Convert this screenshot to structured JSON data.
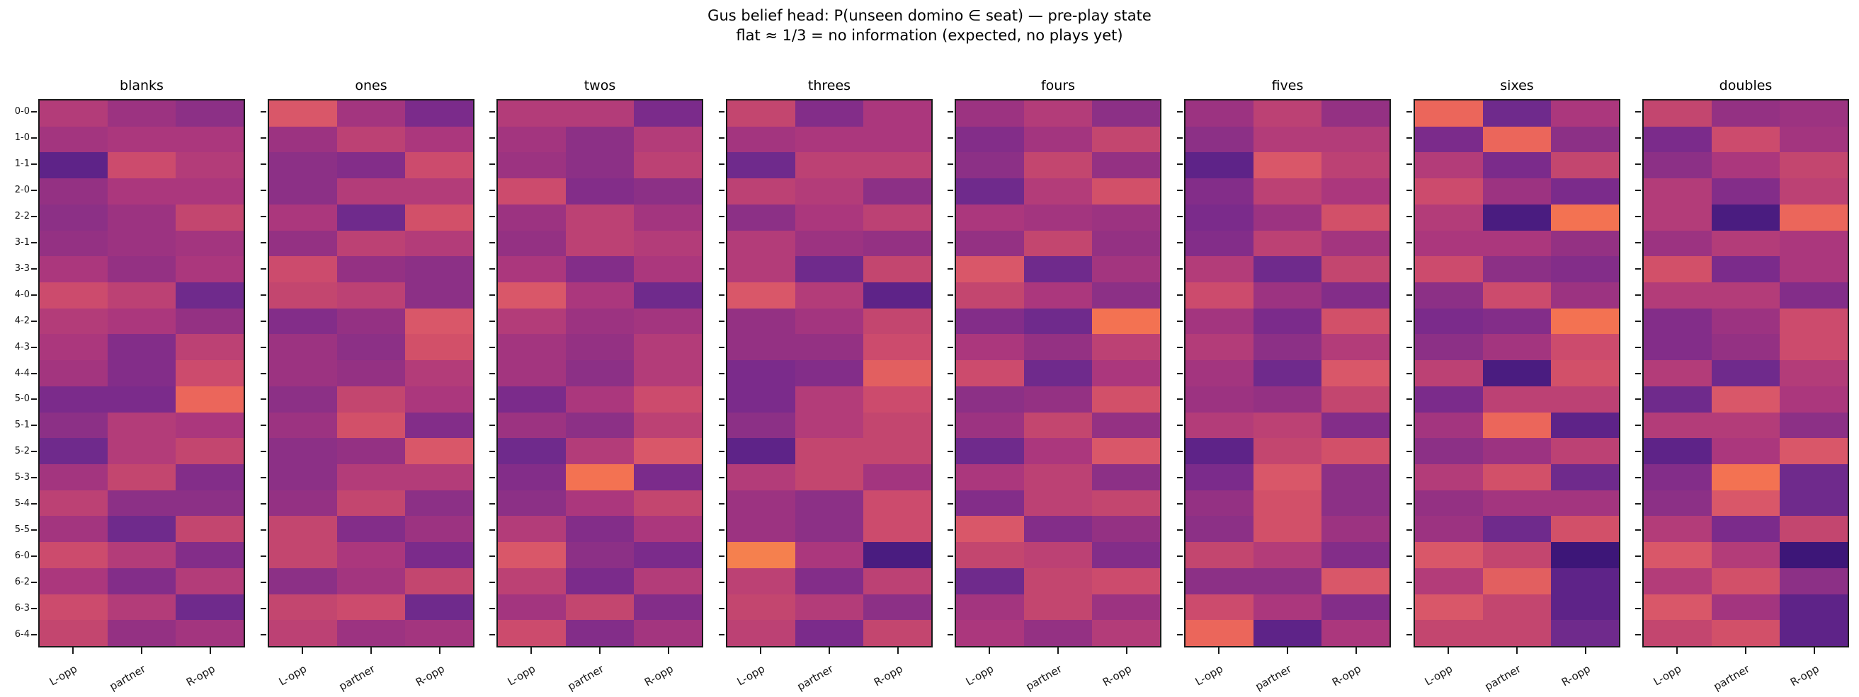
{
  "figure": {
    "title_line1": "Gus belief head: P(unseen domino ∈ seat) — pre-play state",
    "title_line2": "flat ≈ 1/3 = no information (expected, no plays yet)"
  },
  "chart_data": {
    "type": "heatmap",
    "title": "Gus belief head: P(unseen domino ∈ seat) — pre-play state",
    "subtitle": "flat ≈ 1/3 = no information (expected, no plays yet)",
    "x_categories": [
      "L-opp",
      "partner",
      "R-opp"
    ],
    "y_categories": [
      "0-0",
      "1-0",
      "1-1",
      "2-0",
      "2-2",
      "3-1",
      "3-3",
      "4-0",
      "4-2",
      "4-3",
      "4-4",
      "5-0",
      "5-1",
      "5-2",
      "5-3",
      "5-4",
      "5-5",
      "6-0",
      "6-2",
      "6-3",
      "6-4"
    ],
    "legend_position": "none",
    "grid": "off",
    "colormap_note": "no colorbar shown; cells encode P(domino in seat), all values ≈ 1/3 with small noise; cell entries below are indices into palette (dark = lower, orange = higher)",
    "value_mapping": {
      "formula": "approx_p ≈ 0.26 + 0.008 × color_index",
      "approx_value_range": [
        0.26,
        0.42
      ]
    },
    "palette": [
      "#3d1678",
      "#4a1c80",
      "#5e2388",
      "#6f2a8c",
      "#7b2b8b",
      "#832d89",
      "#8c3086",
      "#943183",
      "#9c3381",
      "#a3357f",
      "#ab377d",
      "#b33c79",
      "#bc4174",
      "#c3466f",
      "#cc4b6d",
      "#d25069",
      "#d95769",
      "#e25f60",
      "#eb665b",
      "#f37252",
      "#f5804e"
    ],
    "subplots": [
      {
        "title": "blanks",
        "cells": [
          [
            11,
            8,
            6
          ],
          [
            9,
            10,
            10
          ],
          [
            2,
            14,
            11
          ],
          [
            7,
            10,
            10
          ],
          [
            6,
            8,
            13
          ],
          [
            7,
            8,
            9
          ],
          [
            10,
            7,
            10
          ],
          [
            14,
            12,
            3
          ],
          [
            11,
            10,
            7
          ],
          [
            10,
            5,
            12
          ],
          [
            9,
            5,
            14
          ],
          [
            4,
            4,
            18
          ],
          [
            6,
            11,
            10
          ],
          [
            3,
            11,
            13
          ],
          [
            9,
            13,
            5
          ],
          [
            12,
            6,
            6
          ],
          [
            9,
            3,
            13
          ],
          [
            14,
            11,
            5
          ],
          [
            10,
            5,
            11
          ],
          [
            14,
            11,
            3
          ],
          [
            13,
            7,
            9
          ]
        ]
      },
      {
        "title": "ones",
        "cells": [
          [
            16,
            9,
            4
          ],
          [
            8,
            12,
            10
          ],
          [
            6,
            5,
            14
          ],
          [
            6,
            11,
            11
          ],
          [
            10,
            3,
            15
          ],
          [
            7,
            12,
            11
          ],
          [
            14,
            7,
            6
          ],
          [
            13,
            12,
            6
          ],
          [
            5,
            7,
            16
          ],
          [
            8,
            6,
            15
          ],
          [
            8,
            7,
            11
          ],
          [
            6,
            13,
            10
          ],
          [
            8,
            15,
            5
          ],
          [
            6,
            7,
            16
          ],
          [
            6,
            11,
            11
          ],
          [
            7,
            13,
            6
          ],
          [
            13,
            5,
            8
          ],
          [
            13,
            10,
            4
          ],
          [
            6,
            9,
            13
          ],
          [
            13,
            14,
            3
          ],
          [
            12,
            8,
            9
          ]
        ]
      },
      {
        "title": "twos",
        "cells": [
          [
            11,
            11,
            4
          ],
          [
            9,
            6,
            11
          ],
          [
            8,
            6,
            12
          ],
          [
            14,
            5,
            6
          ],
          [
            8,
            12,
            9
          ],
          [
            7,
            12,
            11
          ],
          [
            10,
            5,
            10
          ],
          [
            16,
            10,
            3
          ],
          [
            11,
            8,
            9
          ],
          [
            9,
            7,
            11
          ],
          [
            9,
            6,
            11
          ],
          [
            4,
            10,
            14
          ],
          [
            8,
            6,
            12
          ],
          [
            3,
            11,
            16
          ],
          [
            5,
            19,
            4
          ],
          [
            6,
            10,
            13
          ],
          [
            11,
            5,
            10
          ],
          [
            16,
            6,
            4
          ],
          [
            12,
            4,
            11
          ],
          [
            9,
            13,
            5
          ],
          [
            14,
            5,
            9
          ]
        ]
      },
      {
        "title": "threes",
        "cells": [
          [
            13,
            5,
            10
          ],
          [
            9,
            10,
            10
          ],
          [
            3,
            12,
            12
          ],
          [
            12,
            11,
            6
          ],
          [
            6,
            10,
            12
          ],
          [
            11,
            8,
            7
          ],
          [
            11,
            3,
            13
          ],
          [
            16,
            11,
            2
          ],
          [
            7,
            9,
            13
          ],
          [
            7,
            7,
            14
          ],
          [
            4,
            5,
            17
          ],
          [
            4,
            11,
            14
          ],
          [
            6,
            11,
            13
          ],
          [
            2,
            13,
            13
          ],
          [
            11,
            13,
            9
          ],
          [
            8,
            6,
            14
          ],
          [
            8,
            6,
            14
          ],
          [
            20,
            10,
            1
          ],
          [
            12,
            5,
            12
          ],
          [
            13,
            11,
            6
          ],
          [
            12,
            4,
            13
          ]
        ]
      },
      {
        "title": "fours",
        "cells": [
          [
            8,
            11,
            6
          ],
          [
            5,
            9,
            13
          ],
          [
            6,
            13,
            7
          ],
          [
            3,
            11,
            15
          ],
          [
            10,
            9,
            8
          ],
          [
            7,
            13,
            7
          ],
          [
            16,
            3,
            9
          ],
          [
            13,
            10,
            6
          ],
          [
            5,
            3,
            19
          ],
          [
            10,
            7,
            12
          ],
          [
            14,
            3,
            10
          ],
          [
            6,
            7,
            15
          ],
          [
            8,
            13,
            7
          ],
          [
            3,
            10,
            16
          ],
          [
            10,
            12,
            6
          ],
          [
            5,
            12,
            13
          ],
          [
            16,
            5,
            7
          ],
          [
            13,
            12,
            5
          ],
          [
            3,
            13,
            14
          ],
          [
            9,
            13,
            8
          ],
          [
            10,
            7,
            11
          ]
        ]
      },
      {
        "title": "fives",
        "cells": [
          [
            8,
            12,
            7
          ],
          [
            6,
            11,
            11
          ],
          [
            2,
            16,
            12
          ],
          [
            5,
            12,
            10
          ],
          [
            4,
            8,
            15
          ],
          [
            5,
            12,
            9
          ],
          [
            11,
            3,
            13
          ],
          [
            14,
            8,
            5
          ],
          [
            9,
            4,
            15
          ],
          [
            11,
            6,
            11
          ],
          [
            9,
            3,
            16
          ],
          [
            8,
            7,
            13
          ],
          [
            11,
            12,
            5
          ],
          [
            2,
            13,
            15
          ],
          [
            4,
            16,
            6
          ],
          [
            7,
            15,
            6
          ],
          [
            6,
            15,
            8
          ],
          [
            13,
            11,
            5
          ],
          [
            6,
            6,
            16
          ],
          [
            14,
            10,
            5
          ],
          [
            18,
            2,
            10
          ]
        ]
      },
      {
        "title": "sixes",
        "cells": [
          [
            18,
            3,
            10
          ],
          [
            4,
            18,
            6
          ],
          [
            11,
            4,
            13
          ],
          [
            14,
            8,
            4
          ],
          [
            11,
            1,
            19
          ],
          [
            10,
            10,
            7
          ],
          [
            14,
            6,
            5
          ],
          [
            6,
            14,
            8
          ],
          [
            4,
            5,
            19
          ],
          [
            6,
            9,
            14
          ],
          [
            12,
            1,
            15
          ],
          [
            4,
            12,
            12
          ],
          [
            9,
            18,
            2
          ],
          [
            6,
            8,
            12
          ],
          [
            11,
            15,
            3
          ],
          [
            7,
            9,
            9
          ],
          [
            8,
            3,
            15
          ],
          [
            16,
            13,
            0
          ],
          [
            11,
            17,
            2
          ],
          [
            16,
            13,
            2
          ],
          [
            13,
            13,
            3
          ]
        ]
      },
      {
        "title": "doubles",
        "cells": [
          [
            13,
            7,
            8
          ],
          [
            4,
            14,
            9
          ],
          [
            6,
            10,
            13
          ],
          [
            11,
            5,
            12
          ],
          [
            11,
            1,
            18
          ],
          [
            8,
            11,
            10
          ],
          [
            15,
            4,
            10
          ],
          [
            11,
            11,
            5
          ],
          [
            5,
            8,
            14
          ],
          [
            5,
            7,
            14
          ],
          [
            11,
            3,
            11
          ],
          [
            3,
            16,
            10
          ],
          [
            11,
            11,
            6
          ],
          [
            2,
            10,
            16
          ],
          [
            5,
            19,
            3
          ],
          [
            6,
            16,
            3
          ],
          [
            11,
            4,
            13
          ],
          [
            16,
            11,
            0
          ],
          [
            11,
            15,
            6
          ],
          [
            16,
            9,
            2
          ],
          [
            13,
            15,
            2
          ]
        ]
      }
    ]
  }
}
